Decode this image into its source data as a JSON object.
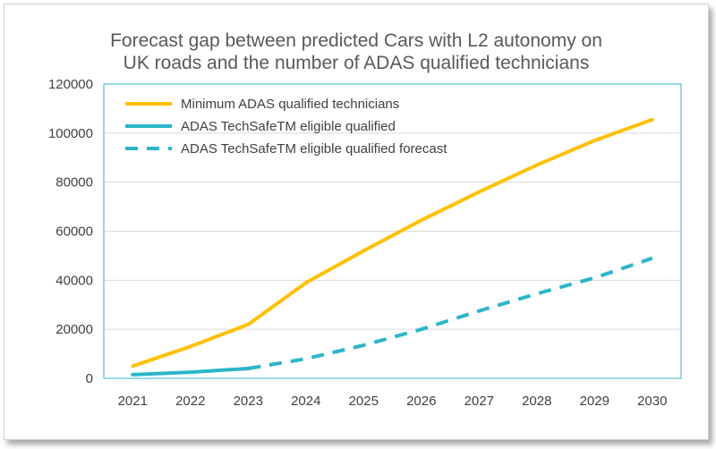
{
  "chart_data": {
    "type": "line",
    "title_lines": [
      "Forecast gap between predicted Cars with L2 autonomy on",
      "UK roads and the number of ADAS qualified technicians"
    ],
    "xlabel": "",
    "ylabel": "",
    "categories": [
      "2021",
      "2022",
      "2023",
      "2024",
      "2025",
      "2026",
      "2027",
      "2028",
      "2029",
      "2030"
    ],
    "ylim": [
      0,
      120000
    ],
    "yticks": [
      0,
      20000,
      40000,
      60000,
      80000,
      100000,
      120000
    ],
    "ytick_labels": [
      "0",
      "20000",
      "40000",
      "60000",
      "80000",
      "100000",
      "120000"
    ],
    "grid": true,
    "legend_position": "top-left inside plot",
    "series": [
      {
        "name": "Minimum ADAS qualified technicians",
        "color": "#FFC000",
        "style": "solid",
        "values": [
          5000,
          13000,
          22000,
          39000,
          52000,
          64500,
          76000,
          87000,
          97000,
          105500
        ]
      },
      {
        "name": "ADAS TechSafeTM eligible qualified",
        "color": "#2CB5C9",
        "style": "solid",
        "values": [
          1500,
          2500,
          4000,
          null,
          null,
          null,
          null,
          null,
          null,
          null
        ]
      },
      {
        "name": "ADAS TechSafeTM eligible qualified forecast",
        "color": "#2CB5C9",
        "style": "dashed",
        "values": [
          null,
          null,
          4000,
          8000,
          13500,
          20000,
          27500,
          34500,
          41000,
          49000
        ]
      }
    ]
  }
}
